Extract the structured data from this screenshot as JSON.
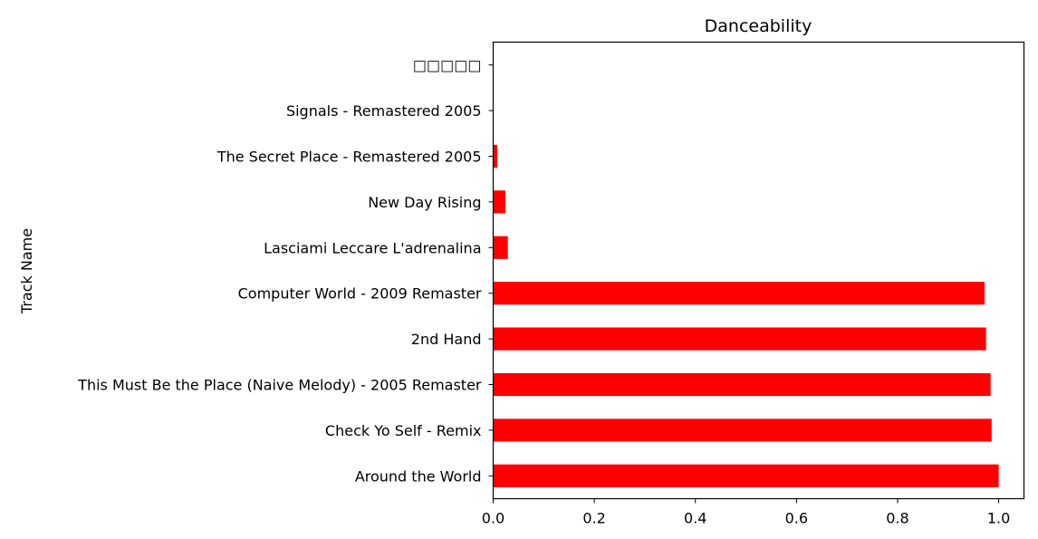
{
  "chart_data": {
    "type": "bar",
    "orientation": "horizontal",
    "title": "Danceability",
    "xlabel": "",
    "ylabel": "Track Name",
    "xlim": [
      0,
      1.05
    ],
    "xticks": [
      "0.0",
      "0.2",
      "0.4",
      "0.6",
      "0.8",
      "1.0"
    ],
    "grid": false,
    "categories": [
      "Around the World",
      "Check Yo Self - Remix",
      "This Must Be the Place (Naive Melody) - 2005 Remaster",
      "2nd Hand",
      "Computer World - 2009 Remaster",
      "Lasciami Leccare L'adrenalina",
      "New Day Rising",
      "The Secret Place - Remastered 2005",
      "Signals - Remastered 2005",
      "□□□□□"
    ],
    "values": [
      1.0,
      0.986,
      0.984,
      0.975,
      0.972,
      0.029,
      0.024,
      0.008,
      0.0,
      0.0
    ],
    "bar_color": "#ff0000"
  }
}
